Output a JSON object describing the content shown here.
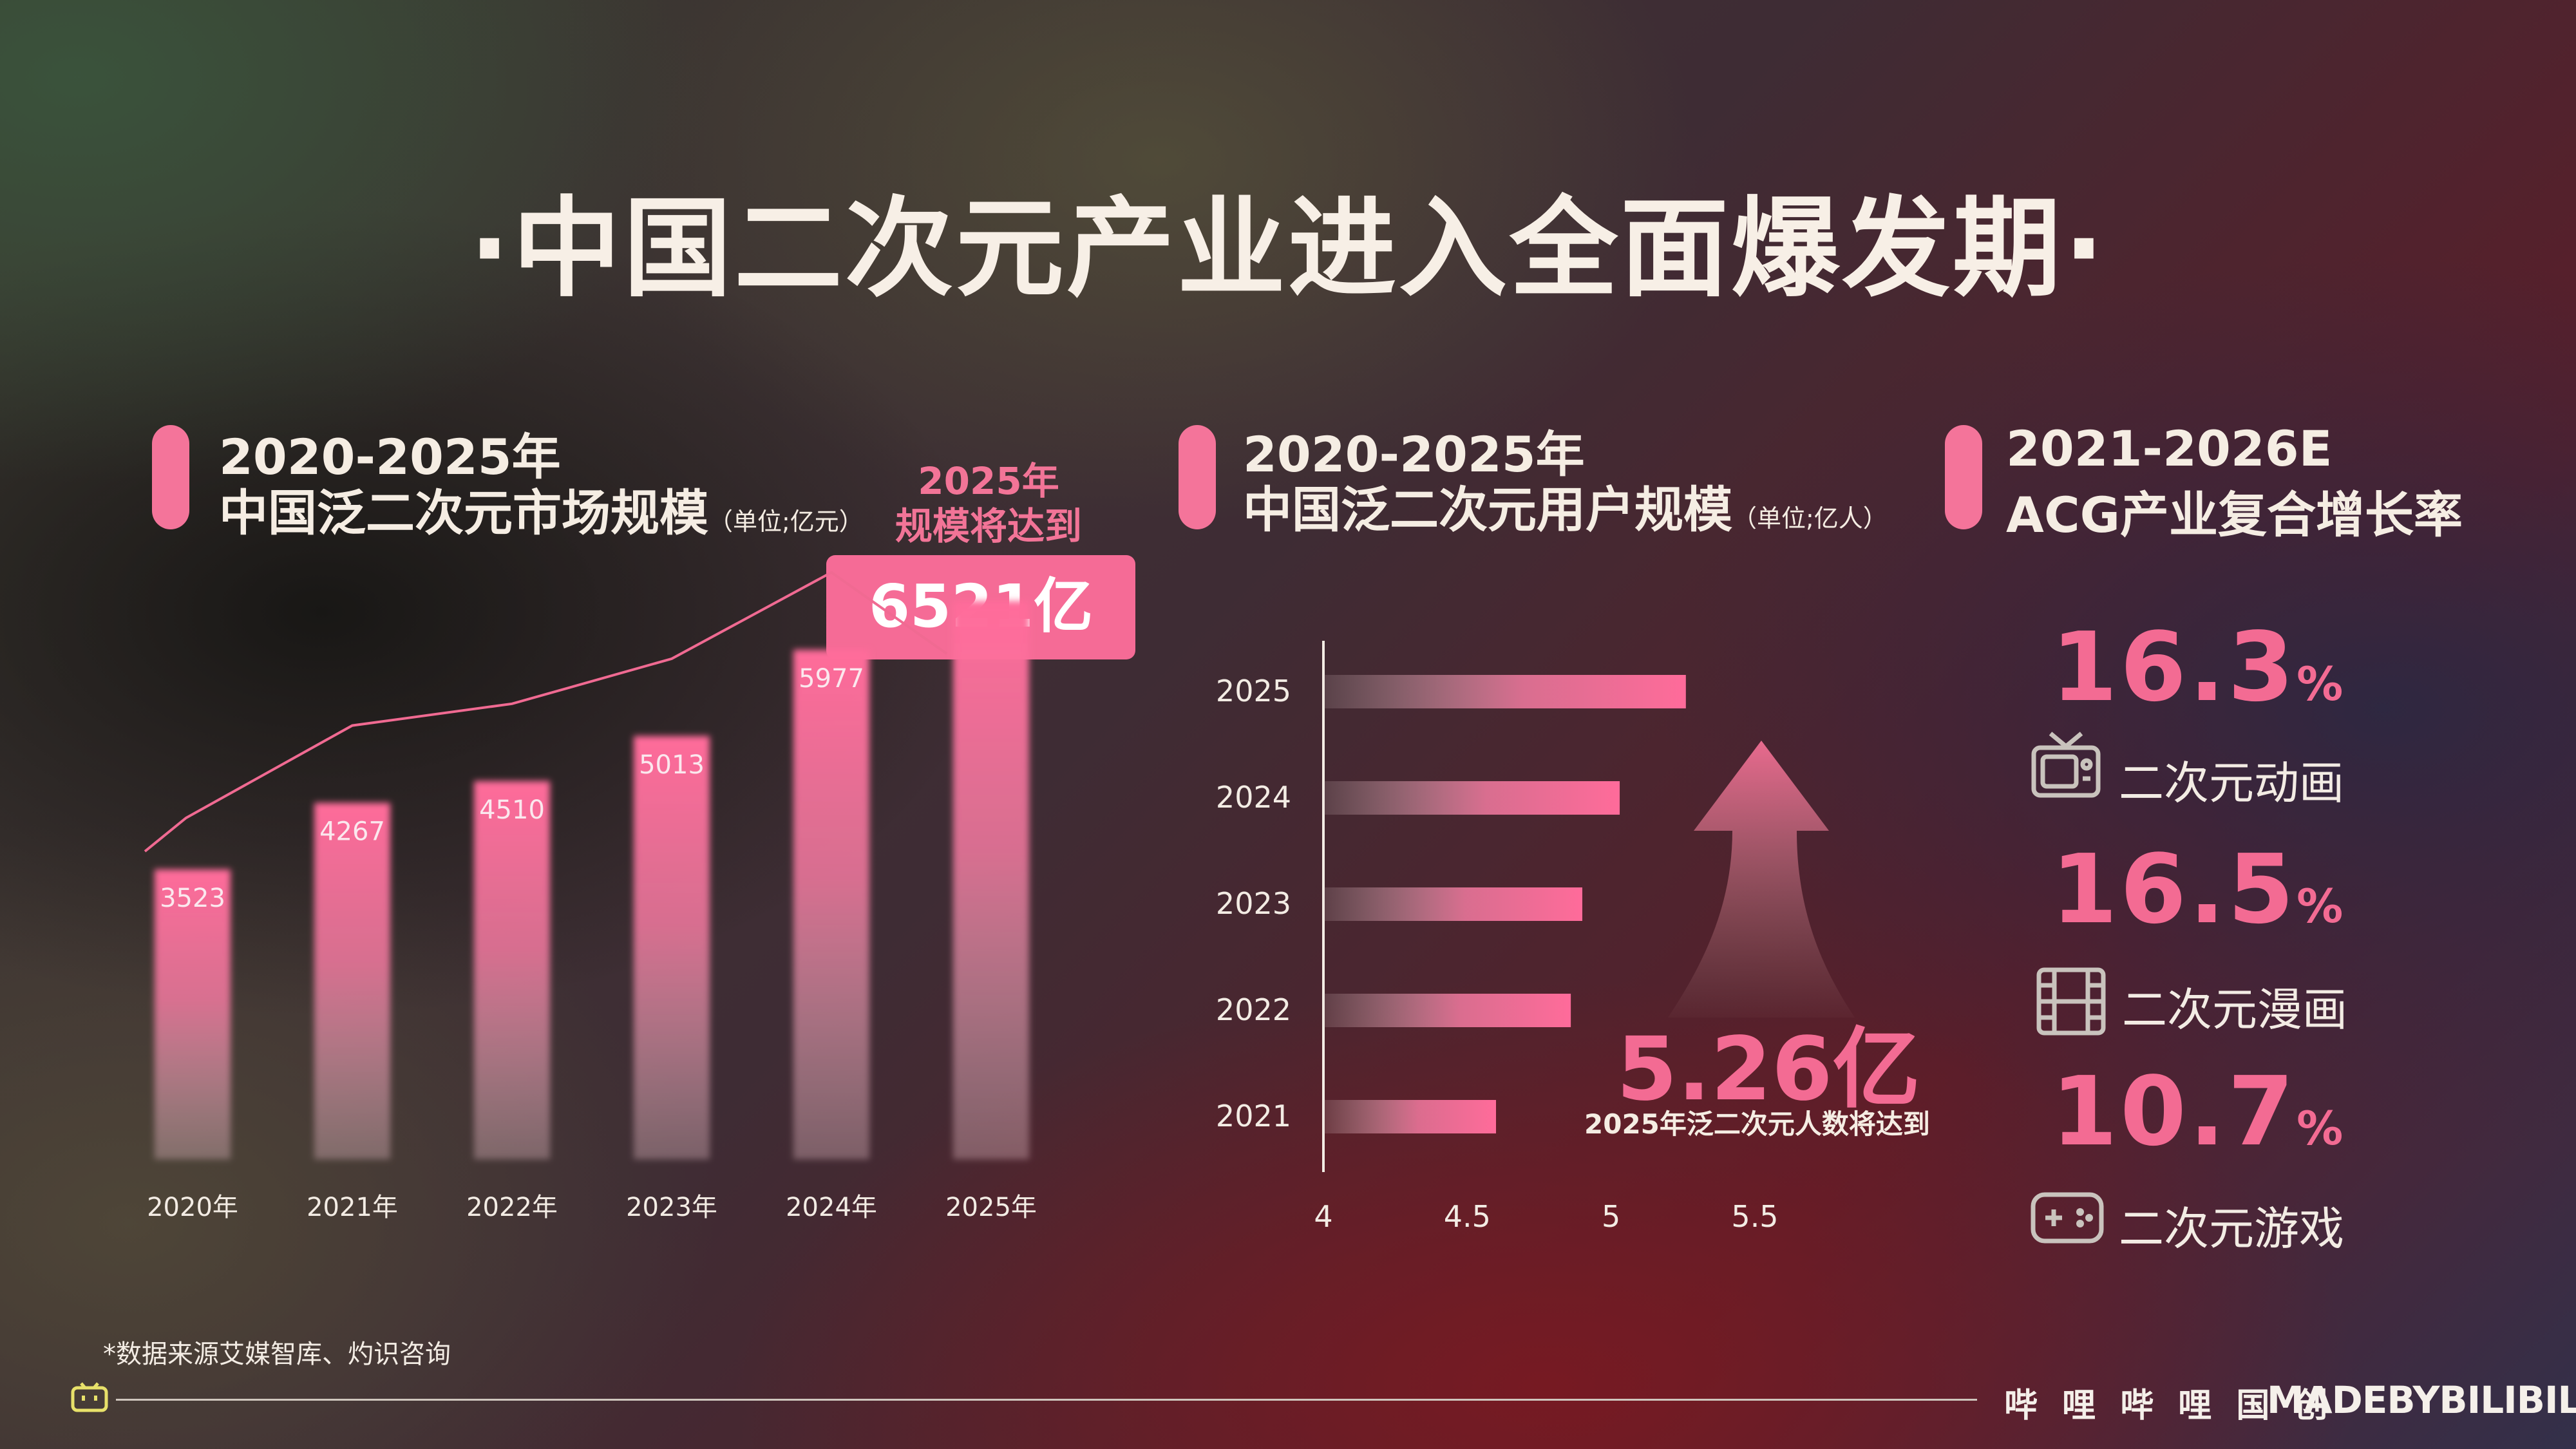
{
  "title": "·中国二次元产业进入全面爆发期·",
  "section1": {
    "line1": "2020-2025年",
    "line2": "中国泛二次元市场规模",
    "unit": "（单位;亿元）",
    "callout_line1": "2025年",
    "callout_line2": "规模将达到",
    "callout_value": "6521亿"
  },
  "section2": {
    "line1": "2020-2025年",
    "line2": "中国泛二次元用户规模",
    "unit": "（单位;亿人）",
    "callout_value": "5.26亿",
    "callout_caption": "2025年泛二次元人数将达到"
  },
  "section3": {
    "line1": "2021-2026E",
    "line2": "ACG产业复合增长率",
    "rates": [
      {
        "value": "16.3",
        "pct": "%",
        "label": "二次元动画",
        "icon": "tv-icon"
      },
      {
        "value": "16.5",
        "pct": "%",
        "label": "二次元漫画",
        "icon": "film-icon"
      },
      {
        "value": "10.7",
        "pct": "%",
        "label": "二次元游戏",
        "icon": "gamepad-icon"
      }
    ]
  },
  "chart_data": [
    {
      "type": "bar",
      "categories": [
        "2020年",
        "2021年",
        "2022年",
        "2023年",
        "2024年",
        "2025年"
      ],
      "values": [
        3523,
        4267,
        4510,
        5013,
        5977,
        6521
      ],
      "data_labels": [
        "3523",
        "4267",
        "4510",
        "5013",
        "5977",
        ""
      ],
      "trend_line": true,
      "title": "",
      "xlabel": "",
      "ylabel": ""
    },
    {
      "type": "bar",
      "orientation": "horizontal",
      "categories": [
        "2025",
        "2024",
        "2023",
        "2022",
        "2021"
      ],
      "values": [
        5.26,
        5.03,
        4.9,
        4.86,
        4.6
      ],
      "xlim": [
        4,
        5.5
      ],
      "xticks": [
        "4",
        "4.5",
        "5",
        "5.5"
      ],
      "title": "",
      "xlabel": "",
      "ylabel": ""
    }
  ],
  "source_note": "*数据来源艾媒智库、灼识咨询",
  "footer": {
    "brand_cn": "哔 哩 哔 哩 国 创",
    "brand_en": "MADEBYBILIBILI"
  },
  "colors": {
    "accent": "#f56b96"
  }
}
